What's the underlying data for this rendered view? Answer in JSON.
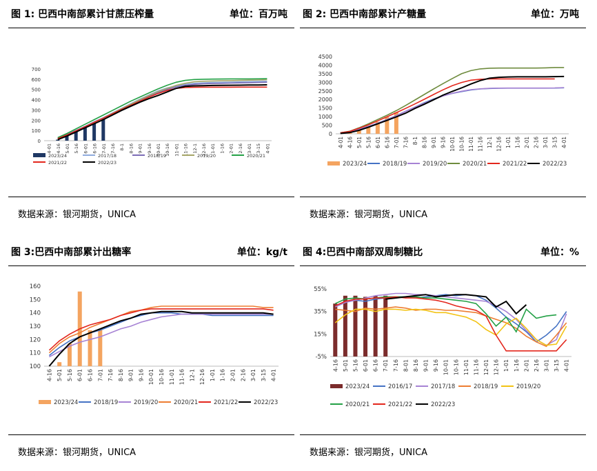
{
  "source_note": "数据来源：银河期货，UNICA",
  "charts": [
    {
      "title": "图 1: 巴西中南部累计甘蔗压榨量",
      "unit": "单位：百万吨",
      "chart_data": {
        "type": "line",
        "ylim": [
          0,
          700
        ],
        "yticks": [
          "0",
          "100",
          "200",
          "300",
          "400",
          "500",
          "600",
          "700"
        ],
        "categories": [
          "4-01",
          "4-16",
          "5-01",
          "5-16",
          "6-01",
          "6-16",
          "7-01",
          "7-16",
          "8-1",
          "8-16",
          "9-01",
          "9-16",
          "10-01",
          "10-16",
          "11-01",
          "11-16",
          "12-1",
          "12-16",
          "1-01",
          "1-16",
          "2-01",
          "2-16",
          "3-01",
          "3-15",
          "4-01"
        ],
        "bar_series": {
          "name": "2023/24",
          "color": "#1F3864",
          "values": [
            null,
            10,
            55,
            100,
            140,
            180,
            215
          ]
        },
        "series": [
          {
            "name": "2017/18",
            "color": "#8FAADC",
            "values": [
              null,
              25,
              60,
              100,
              140,
              185,
              225,
              270,
              315,
              360,
              405,
              445,
              485,
              515,
              535,
              550,
              560,
              565,
              568,
              570,
              572,
              574,
              576,
              578,
              580
            ]
          },
          {
            "name": "2018/19",
            "color": "#7B6BB5",
            "values": [
              null,
              22,
              58,
              98,
              138,
              180,
              220,
              265,
              310,
              352,
              395,
              435,
              470,
              500,
              525,
              540,
              550,
              555,
              558,
              560,
              562,
              564,
              566,
              568,
              570
            ]
          },
          {
            "name": "2019/20",
            "color": "#A5A566",
            "values": [
              null,
              20,
              55,
              95,
              135,
              178,
              220,
              265,
              310,
              355,
              400,
              440,
              478,
              510,
              540,
              560,
              575,
              580,
              583,
              585,
              586,
              588,
              590,
              592,
              595
            ]
          },
          {
            "name": "2020/21",
            "color": "#22A045",
            "values": [
              null,
              30,
              70,
              115,
              160,
              205,
              250,
              295,
              340,
              385,
              425,
              465,
              505,
              540,
              570,
              588,
              597,
              600,
              601,
              602,
              603,
              603,
              603,
              604,
              605
            ]
          },
          {
            "name": "2021/22",
            "color": "#E3261C",
            "values": [
              null,
              20,
              55,
              95,
              135,
              180,
              220,
              262,
              305,
              345,
              385,
              425,
              460,
              490,
              510,
              518,
              521,
              522,
              522,
              522,
              522,
              523,
              523,
              523,
              523
            ]
          },
          {
            "name": "2022/23",
            "color": "#000000",
            "values": [
              null,
              10,
              45,
              85,
              125,
              165,
              205,
              250,
              295,
              335,
              375,
              410,
              440,
              475,
              510,
              530,
              535,
              537,
              539,
              540,
              541,
              542,
              543,
              544,
              545
            ]
          }
        ],
        "legend": [
          "2023/24",
          "2017/18",
          "2018/19",
          "2019/20",
          "2020/21",
          "2021/22",
          "2022/23"
        ]
      }
    },
    {
      "title": "图 2: 巴西中南部累计产糖量",
      "unit": "单位：万吨",
      "chart_data": {
        "type": "line",
        "ylim": [
          0,
          4500
        ],
        "yticks": [
          "0",
          "500",
          "1000",
          "1500",
          "2000",
          "2500",
          "3000",
          "3500",
          "4000",
          "4500"
        ],
        "categories": [
          "4-01",
          "4-16",
          "5-01",
          "5-16",
          "6-01",
          "6-16",
          "7-01",
          "7-16",
          "8-1",
          "8-16",
          "9-01",
          "9-16",
          "10-01",
          "10-16",
          "11-01",
          "11-16",
          "12-1",
          "12-16",
          "1-01",
          "1-16",
          "2-01",
          "2-16",
          "3-01",
          "3-15",
          "4-01"
        ],
        "bar_series": {
          "name": "2023/24",
          "color": "#F4A460",
          "values": [
            null,
            60,
            230,
            450,
            700,
            980,
            1250
          ]
        },
        "series": [
          {
            "name": "2018/19",
            "color": "#4472C4",
            "values": [
              60,
              120,
              260,
              430,
              620,
              830,
              1060,
              1310,
              1560,
              1810,
              2030,
              2210,
              2350,
              2460,
              2550,
              2610,
              2640,
              2655,
              2660,
              2660,
              2660,
              2660,
              2660,
              2665,
              2680
            ]
          },
          {
            "name": "2019/20",
            "color": "#A682D4",
            "values": [
              50,
              110,
              250,
              420,
              610,
              820,
              1050,
              1300,
              1550,
              1780,
              2000,
              2200,
              2360,
              2480,
              2570,
              2620,
              2650,
              2660,
              2665,
              2665,
              2665,
              2665,
              2665,
              2670,
              2690
            ]
          },
          {
            "name": "2020/21",
            "color": "#6E8B3D",
            "values": [
              60,
              150,
              350,
              580,
              830,
              1080,
              1350,
              1650,
              1970,
              2290,
              2610,
              2920,
              3220,
              3500,
              3680,
              3780,
              3820,
              3830,
              3830,
              3830,
              3830,
              3830,
              3840,
              3860,
              3860
            ]
          },
          {
            "name": "2021/22",
            "color": "#E3261C",
            "values": [
              60,
              140,
              320,
              520,
              750,
              990,
              1230,
              1480,
              1740,
              2010,
              2290,
              2560,
              2800,
              2990,
              3120,
              3180,
              3200,
              3200,
              3200,
              3200,
              3200,
              3200,
              3200,
              3200,
              null
            ]
          },
          {
            "name": "2022/23",
            "color": "#000000",
            "values": [
              20,
              70,
              200,
              380,
              580,
              780,
              990,
              1200,
              1480,
              1720,
              1980,
              2250,
              2470,
              2670,
              2900,
              3100,
              3240,
              3290,
              3310,
              3320,
              3320,
              3320,
              3320,
              3330,
              3340
            ]
          }
        ],
        "legend": [
          "2023/24",
          "2018/19",
          "2019/20",
          "2020/21",
          "2021/22",
          "2022/23"
        ]
      }
    },
    {
      "title": "图 3:巴西中南部累计出糖率",
      "unit": "单位：kg/t",
      "chart_data": {
        "type": "line",
        "ylim": [
          100,
          160
        ],
        "yticks": [
          "100",
          "110",
          "120",
          "130",
          "140",
          "150",
          "160"
        ],
        "categories": [
          "4-16",
          "5-01",
          "5-16",
          "6-01",
          "6-16",
          "7-01",
          "7-16",
          "8-16",
          "9-01",
          "9-16",
          "10-01",
          "10-16",
          "11-01",
          "11-16",
          "12-1",
          "12-16",
          "1-01",
          "1-16",
          "2-01",
          "2-16",
          "3-01",
          "3-15",
          "4-01"
        ],
        "bar_series": {
          "name": "2023/24",
          "color": "#F4A460",
          "values": [
            null,
            103,
            117,
            156,
            127,
            128
          ]
        },
        "series": [
          {
            "name": "2018/19",
            "color": "#4472C4",
            "values": [
              108,
              114,
              119,
              122,
              125,
              127,
              130,
              133,
              136,
              138,
              140,
              140,
              140,
              139,
              139,
              139,
              138,
              138,
              138,
              138,
              138,
              138,
              138
            ]
          },
          {
            "name": "2019/20",
            "color": "#A682D4",
            "values": [
              107,
              111,
              115,
              118,
              120,
              122,
              125,
              128,
              130,
              133,
              135,
              137,
              138,
              139,
              139,
              139,
              139,
              139,
              139,
              139,
              139,
              139,
              139
            ]
          },
          {
            "name": "2020/21",
            "color": "#ED7D31",
            "values": [
              110,
              117,
              122,
              125,
              129,
              132,
              135,
              138,
              141,
              142,
              144,
              145,
              145,
              145,
              145,
              145,
              145,
              145,
              145,
              145,
              145,
              144,
              144
            ]
          },
          {
            "name": "2021/22",
            "color": "#E3261C",
            "values": [
              112,
              119,
              124,
              128,
              131,
              133,
              135,
              138,
              140,
              142,
              143,
              143,
              143,
              143,
              143,
              143,
              143,
              143,
              143,
              143,
              143,
              143,
              142
            ]
          },
          {
            "name": "2022/23",
            "color": "#000000",
            "values": [
              100,
              109,
              117,
              122,
              125,
              128,
              131,
              134,
              136,
              139,
              140,
              141,
              141,
              141,
              140,
              140,
              140,
              140,
              140,
              140,
              140,
              140,
              139
            ]
          }
        ],
        "legend": [
          "2023/24",
          "2018/19",
          "2019/20",
          "2020/21",
          "2021/22",
          "2022/23"
        ]
      }
    },
    {
      "title": "图 4:巴西中南部双周制糖比",
      "unit": "单位：%",
      "chart_data": {
        "type": "line",
        "ylim": [
          -5,
          55
        ],
        "yticks": [
          "-5%",
          "15%",
          "35%",
          "55%"
        ],
        "ytick_values": [
          -5,
          15,
          35,
          55
        ],
        "categories": [
          "4-16",
          "5-01",
          "5-16",
          "6-01",
          "6-16",
          "7-01",
          "7-16",
          "8-01",
          "8-16",
          "9-01",
          "9-16",
          "10-01",
          "10-16",
          "11-01",
          "11-16",
          "12-01",
          "12-16",
          "1-01",
          "1-16",
          "2-01",
          "2-16",
          "3-01",
          "3-15",
          "4-01"
        ],
        "bar_series": {
          "name": "2023/24",
          "color": "#7B2C2C",
          "values": [
            42,
            49,
            49,
            48,
            49,
            49
          ]
        },
        "series": [
          {
            "name": "2016/17",
            "color": "#4472C4",
            "values": [
              40,
              44,
              45,
              44,
              46,
              47,
              47,
              48,
              47,
              48,
              49,
              50,
              49,
              50,
              49,
              45,
              38,
              30,
              24,
              17,
              8,
              14,
              22,
              35
            ]
          },
          {
            "name": "2017/18",
            "color": "#A682D4",
            "values": [
              39,
              43,
              45,
              47,
              49,
              50,
              51,
              51,
              50,
              50,
              49,
              48,
              47,
              46,
              45,
              44,
              40,
              35,
              28,
              18,
              10,
              5,
              10,
              33
            ]
          },
          {
            "name": "2018/19",
            "color": "#ED7D31",
            "values": [
              37,
              36,
              35,
              38,
              37,
              38,
              39,
              38,
              36,
              37,
              37,
              36,
              36,
              35,
              34,
              31,
              28,
              25,
              20,
              13,
              8,
              4,
              14,
              25
            ]
          },
          {
            "name": "2019/20",
            "color": "#F2C314",
            "values": [
              25,
              32,
              37,
              37,
              35,
              37,
              37,
              36,
              37,
              36,
              34,
              34,
              32,
              30,
              26,
              19,
              14,
              24,
              29,
              20,
              10,
              5,
              6,
              22
            ]
          },
          {
            "name": "2020/21",
            "color": "#22A045",
            "values": [
              42,
              46,
              47,
              46,
              47,
              48,
              48,
              48,
              48,
              47,
              47,
              46,
              45,
              44,
              42,
              33,
              22,
              30,
              17,
              37,
              29,
              31,
              32,
              null
            ]
          },
          {
            "name": "2021/22",
            "color": "#E3261C",
            "values": [
              40,
              44,
              46,
              46,
              47,
              47,
              48,
              47,
              47,
              46,
              45,
              43,
              40,
              38,
              36,
              31,
              14,
              0,
              0,
              0,
              0,
              0,
              0,
              10
            ]
          },
          {
            "name": "2022/23",
            "color": "#000000",
            "values": [
              null,
              null,
              null,
              null,
              null,
              46,
              47,
              48,
              49,
              50,
              48,
              49,
              50,
              50,
              49,
              48,
              39,
              44,
              33,
              41,
              null,
              null,
              null,
              null
            ]
          }
        ],
        "legend": [
          "2023/24",
          "2016/17",
          "2017/18",
          "2018/19",
          "2019/20",
          "2020/21",
          "2021/22",
          "2022/23"
        ]
      }
    }
  ]
}
